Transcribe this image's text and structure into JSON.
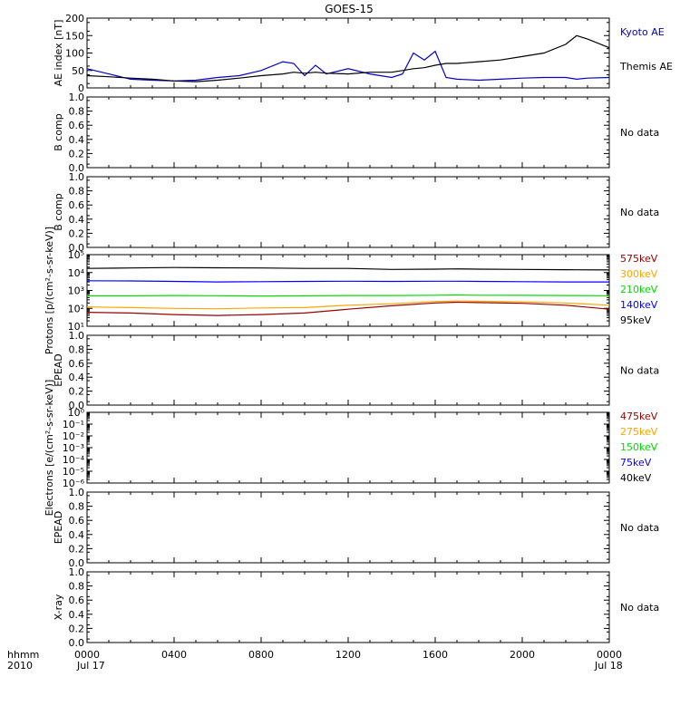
{
  "title": "GOES-15",
  "colors": {
    "black": "#000000",
    "blue": "#0000cc",
    "green": "#00dd00",
    "orange": "#ffa500",
    "darkred": "#990000",
    "brightblue": "#0000ff"
  },
  "no_data_text": "No data",
  "xaxis": {
    "corner_top": "hhmm",
    "corner_bottom": "2010",
    "ticks": [
      "0000",
      "0400",
      "0800",
      "1200",
      "1600",
      "2000",
      "0000"
    ],
    "date_start": "Jul 17",
    "date_end": "Jul 18"
  },
  "chart_data": [
    {
      "type": "line",
      "panel": "ae",
      "ylabel": "AE index [nT]",
      "ylim": [
        0,
        200
      ],
      "yticks": [
        "0",
        "50",
        "100",
        "150",
        "200"
      ],
      "x_hours": [
        0,
        1,
        2,
        3,
        4,
        5,
        6,
        7,
        8,
        9,
        9.5,
        10,
        10.5,
        11,
        12,
        13,
        14,
        14.5,
        15,
        15.5,
        16,
        16.5,
        17,
        18,
        19,
        20,
        21,
        22,
        22.5,
        23,
        24
      ],
      "series": [
        {
          "name": "Kyoto AE",
          "color": "#0000cc",
          "values": [
            55,
            40,
            25,
            22,
            20,
            22,
            30,
            35,
            50,
            75,
            70,
            35,
            65,
            40,
            55,
            40,
            30,
            40,
            100,
            80,
            105,
            30,
            25,
            22,
            25,
            28,
            30,
            30,
            25,
            28,
            30
          ]
        },
        {
          "name": "Themis AE",
          "color": "#000000",
          "values": [
            35,
            32,
            28,
            25,
            20,
            18,
            22,
            28,
            35,
            40,
            45,
            42,
            45,
            42,
            40,
            45,
            45,
            50,
            55,
            58,
            65,
            70,
            70,
            75,
            80,
            90,
            100,
            125,
            150,
            140,
            115
          ]
        }
      ]
    },
    {
      "type": "line",
      "panel": "bcomp1",
      "ylabel": "B comp",
      "ylim": [
        0,
        1
      ],
      "yticks": [
        "0.0",
        "0.2",
        "0.4",
        "0.6",
        "0.8",
        "1.0"
      ],
      "series": []
    },
    {
      "type": "line",
      "panel": "bcomp2",
      "ylabel": "B comp",
      "ylim": [
        0,
        1
      ],
      "yticks": [
        "0.0",
        "0.2",
        "0.4",
        "0.6",
        "0.8",
        "1.0"
      ],
      "series": []
    },
    {
      "type": "line",
      "panel": "protons",
      "ylabel": "Protons [p/(cm²-s-sr-keV)]",
      "yscale": "log",
      "ylim": [
        10,
        100000
      ],
      "yticks": [
        "10¹",
        "10²",
        "10³",
        "10⁴",
        "10⁵"
      ],
      "x_hours": [
        0,
        2,
        4,
        6,
        8,
        10,
        12,
        14,
        16,
        17,
        18,
        20,
        22,
        24
      ],
      "series": [
        {
          "name": "575keV",
          "color": "#990000",
          "values": [
            60,
            55,
            45,
            40,
            45,
            55,
            90,
            140,
            200,
            220,
            210,
            190,
            150,
            90
          ]
        },
        {
          "name": "300keV",
          "color": "#ffa500",
          "values": [
            120,
            110,
            100,
            95,
            105,
            110,
            150,
            180,
            240,
            260,
            250,
            230,
            200,
            150
          ]
        },
        {
          "name": "210keV",
          "color": "#00dd00",
          "values": [
            500,
            500,
            520,
            510,
            490,
            500,
            520,
            520,
            540,
            560,
            540,
            530,
            520,
            510
          ]
        },
        {
          "name": "140keV",
          "color": "#0000ff",
          "values": [
            3500,
            3400,
            3200,
            3000,
            3100,
            3200,
            3300,
            3200,
            3300,
            3300,
            3200,
            3100,
            3000,
            3000
          ]
        },
        {
          "name": "95keV",
          "color": "#000000",
          "values": [
            17000,
            18000,
            19000,
            18500,
            18000,
            17000,
            17000,
            15000,
            15500,
            16000,
            15500,
            15000,
            14500,
            14000
          ]
        }
      ]
    },
    {
      "type": "line",
      "panel": "epead1",
      "ylabel": "EPEAD",
      "ylim": [
        0,
        1
      ],
      "yticks": [
        "0.0",
        "0.2",
        "0.4",
        "0.6",
        "0.8",
        "1.0"
      ],
      "series": []
    },
    {
      "type": "line",
      "panel": "electrons",
      "ylabel": "Electrons [e/(cm²-s-sr-keV)]",
      "yscale": "log",
      "ylim": [
        1e-06,
        1
      ],
      "yticks": [
        "10⁻⁶",
        "10⁻⁵",
        "10⁻⁴",
        "10⁻³",
        "10⁻²",
        "10⁻¹",
        "10⁰"
      ],
      "series": [
        {
          "name": "475keV",
          "color": "#990000",
          "values": []
        },
        {
          "name": "275keV",
          "color": "#ffa500",
          "values": []
        },
        {
          "name": "150keV",
          "color": "#00dd00",
          "values": []
        },
        {
          "name": "75keV",
          "color": "#0000ff",
          "values": []
        },
        {
          "name": "40keV",
          "color": "#000000",
          "values": []
        }
      ]
    },
    {
      "type": "line",
      "panel": "epead2",
      "ylabel": "EPEAD",
      "ylim": [
        0,
        1
      ],
      "yticks": [
        "0.0",
        "0.2",
        "0.4",
        "0.6",
        "0.8",
        "1.0"
      ],
      "series": []
    },
    {
      "type": "line",
      "panel": "xray",
      "ylabel": "X-ray",
      "ylim": [
        0,
        1
      ],
      "yticks": [
        "0.0",
        "0.2",
        "0.4",
        "0.6",
        "0.8",
        "1.0"
      ],
      "series": []
    }
  ]
}
